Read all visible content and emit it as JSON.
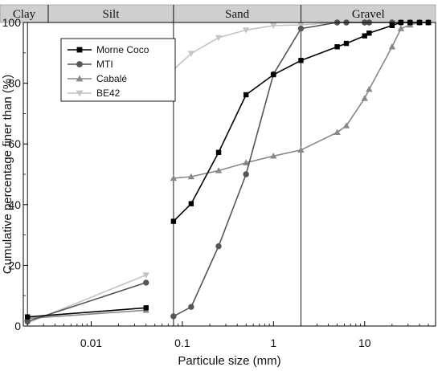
{
  "chart_data": {
    "type": "line",
    "xscale": "log",
    "xlim": [
      0.0018,
      60
    ],
    "ylim": [
      0,
      100
    ],
    "xlabel": "Particule size (mm)",
    "ylabel": "Cumulative percentage finer than (%)",
    "x_ticks": [
      {
        "value": 0.01,
        "label": "0.01"
      },
      {
        "value": 0.1,
        "label": "0.1"
      },
      {
        "value": 1,
        "label": "1"
      },
      {
        "value": 10,
        "label": "10"
      }
    ],
    "y_ticks": [
      {
        "value": 0,
        "label": "0"
      },
      {
        "value": 20,
        "label": "20"
      },
      {
        "value": 40,
        "label": "40"
      },
      {
        "value": 60,
        "label": "60"
      },
      {
        "value": 80,
        "label": "80"
      },
      {
        "value": 100,
        "label": "100"
      }
    ],
    "size_classes": [
      {
        "label": "Clay",
        "from": 0.0018,
        "to": 0.002
      },
      {
        "label": "Silt",
        "from": 0.002,
        "to": 0.08
      },
      {
        "label": "Sand",
        "from": 0.08,
        "to": 2
      },
      {
        "label": "Gravel",
        "from": 2,
        "to": 60
      }
    ],
    "legend_position": "top-left",
    "series": [
      {
        "name": "Morne Coco",
        "marker": "square",
        "color": "#000000",
        "segments": [
          [
            [
              0.002,
              3.0
            ],
            [
              0.04,
              6.0
            ]
          ],
          [
            [
              0.08,
              34.5
            ],
            [
              0.125,
              40.3
            ],
            [
              0.25,
              57.2
            ],
            [
              0.5,
              76.2
            ],
            [
              1.0,
              82.8
            ],
            [
              2.0,
              87.5
            ],
            [
              5.0,
              92.0
            ],
            [
              6.3,
              93.1
            ],
            [
              10.0,
              95.6
            ],
            [
              11.2,
              96.5
            ],
            [
              20.0,
              99.0
            ],
            [
              25.0,
              100
            ],
            [
              31.5,
              100
            ],
            [
              40.0,
              100
            ],
            [
              50.0,
              100
            ]
          ]
        ]
      },
      {
        "name": "MTI",
        "marker": "circle",
        "color": "#555555",
        "segments": [
          [
            [
              0.002,
              1.5
            ],
            [
              0.04,
              14.3
            ]
          ],
          [
            [
              0.08,
              3.2
            ],
            [
              0.125,
              6.3
            ],
            [
              0.25,
              26.3
            ],
            [
              0.5,
              50.0
            ],
            [
              1.0,
              83.0
            ],
            [
              2.0,
              98.0
            ],
            [
              5.0,
              100
            ],
            [
              6.3,
              100
            ],
            [
              10.0,
              100
            ],
            [
              11.2,
              100
            ],
            [
              20.0,
              100
            ],
            [
              25.0,
              100
            ],
            [
              31.5,
              100
            ],
            [
              40.0,
              100
            ],
            [
              50.0,
              100
            ]
          ]
        ]
      },
      {
        "name": "Cabalé",
        "marker": "triangle-up",
        "color": "#888888",
        "segments": [
          [
            [
              0.002,
              2.5
            ],
            [
              0.04,
              5.2
            ]
          ],
          [
            [
              0.08,
              48.7
            ],
            [
              0.125,
              49.2
            ],
            [
              0.25,
              51.2
            ],
            [
              0.5,
              53.8
            ],
            [
              1.0,
              56.0
            ],
            [
              2.0,
              58.0
            ],
            [
              5.0,
              63.8
            ],
            [
              6.3,
              66.0
            ],
            [
              10.0,
              75.0
            ],
            [
              11.2,
              78.0
            ],
            [
              20.0,
              92.0
            ],
            [
              25.0,
              98.0
            ],
            [
              31.5,
              99.2
            ],
            [
              40.0,
              100
            ],
            [
              50.0,
              100
            ]
          ]
        ]
      },
      {
        "name": "BE42",
        "marker": "triangle-down",
        "color": "#c4c4c4",
        "segments": [
          [
            [
              0.002,
              1.0
            ],
            [
              0.04,
              16.8
            ]
          ],
          [
            [
              0.08,
              84.5
            ],
            [
              0.125,
              89.8
            ],
            [
              0.25,
              95.0
            ],
            [
              0.5,
              97.5
            ],
            [
              1.0,
              99.0
            ],
            [
              2.0,
              99.2
            ],
            [
              5.0,
              100
            ],
            [
              6.3,
              100
            ],
            [
              10.0,
              100
            ],
            [
              11.2,
              100
            ],
            [
              20.0,
              100
            ],
            [
              25.0,
              100
            ],
            [
              31.5,
              100
            ],
            [
              40.0,
              100
            ],
            [
              50.0,
              100
            ]
          ]
        ]
      }
    ]
  }
}
